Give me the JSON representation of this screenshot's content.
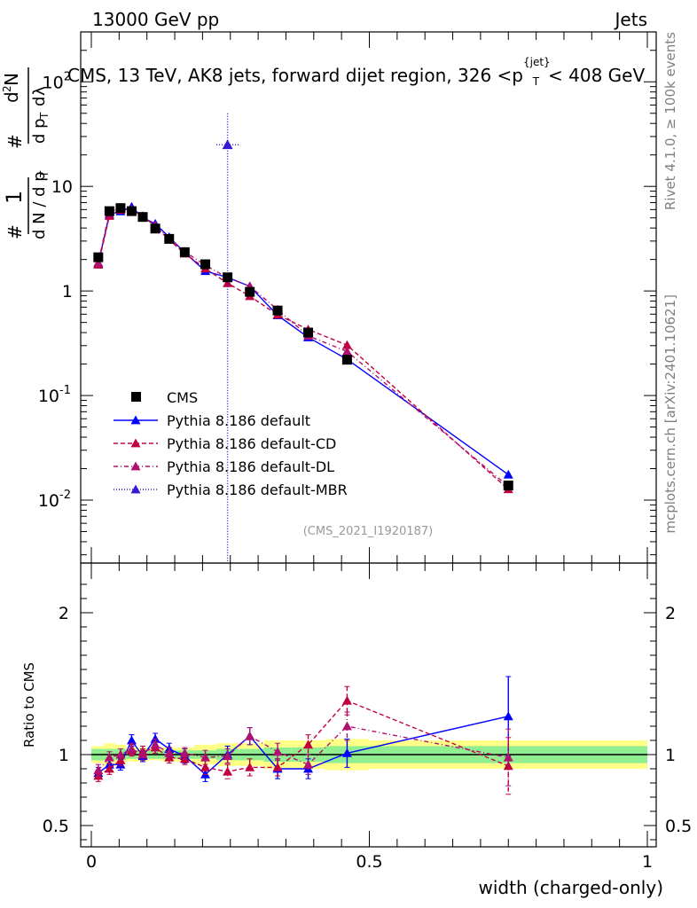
{
  "header": {
    "energy": "13000 GeV pp",
    "category": "Jets"
  },
  "side_labels": {
    "rivet": "Rivet 4.1.0, ≥ 100k events",
    "source": "mcplots.cern.ch [arXiv:2401.10621]"
  },
  "chart_data": {
    "type": "line",
    "title": "CMS, 13 TeV, AK8 jets, forward dijet region, 326 <p{jet}T< 408 GeV",
    "title_parts": {
      "pre": "CMS, 13 TeV, AK8 jets, forward dijet region, 326 <p",
      "sup": "{jet}",
      "sub": "T",
      "post": "< 408 GeV"
    },
    "ylabel_main": "1/dN/dp_T dN^2/dp_T dlambda",
    "ylabel_ratio": "Ratio to CMS",
    "xlabel": "width (charged-only)",
    "analysis_id": "(CMS_2021_I1920187)",
    "xlim": [
      0,
      1
    ],
    "ylim_main": [
      0.0025,
      300
    ],
    "ylim_ratio": [
      0.35,
      2.35
    ],
    "y_ticks_main": [
      {
        "exp": "-2"
      },
      {
        "exp": "-1"
      },
      {
        "plain": "1"
      },
      {
        "plain": "10"
      },
      {
        "exp": "2"
      }
    ],
    "y_ticks_ratio": [
      "0.5",
      "1",
      "2"
    ],
    "x_ticks": [
      "0",
      "0.5",
      "1"
    ],
    "data": {
      "name": "CMS",
      "x": [
        0.0125,
        0.0325,
        0.0525,
        0.0725,
        0.0925,
        0.115,
        0.14,
        0.168,
        0.205,
        0.245,
        0.285,
        0.335,
        0.39,
        0.46,
        0.75
      ],
      "y": [
        2.1,
        5.8,
        6.2,
        5.8,
        5.1,
        3.95,
        3.15,
        2.35,
        1.8,
        1.35,
        0.98,
        0.65,
        0.4,
        0.22,
        0.0138
      ]
    },
    "band_edges": [
      0,
      0.0225,
      0.0425,
      0.0625,
      0.0825,
      0.1025,
      0.1275,
      0.1525,
      0.185,
      0.225,
      0.265,
      0.31,
      0.36,
      0.42,
      0.5,
      1.0
    ],
    "band_stat": [
      0.04,
      0.04,
      0.04,
      0.03,
      0.03,
      0.03,
      0.03,
      0.03,
      0.03,
      0.04,
      0.04,
      0.05,
      0.05,
      0.06,
      0.06
    ],
    "band_total": [
      0.06,
      0.08,
      0.07,
      0.05,
      0.05,
      0.04,
      0.05,
      0.05,
      0.07,
      0.08,
      0.08,
      0.1,
      0.1,
      0.11,
      0.1
    ],
    "series": [
      {
        "name": "Pythia 8.186 default",
        "color": "#0000ff",
        "dash": "",
        "dy": 0,
        "ratio": [
          0.87,
          0.93,
          0.93,
          1.1,
          0.99,
          1.11,
          1.04,
          0.99,
          0.86,
          1.0,
          1.13,
          0.9,
          0.9,
          1.01,
          1.27
        ],
        "err": [
          0.04,
          0.04,
          0.04,
          0.04,
          0.04,
          0.04,
          0.04,
          0.05,
          0.05,
          0.06,
          0.06,
          0.07,
          0.07,
          0.1,
          0.28
        ]
      },
      {
        "name": "Pythia 8.186 default-CD",
        "color": "#c0003f",
        "dash": "5,3",
        "dy": 0,
        "ratio": [
          0.85,
          0.9,
          0.96,
          1.03,
          1.02,
          1.05,
          0.98,
          0.97,
          0.91,
          0.88,
          0.91,
          0.91,
          1.07,
          1.38,
          0.92
        ],
        "err": [
          0.04,
          0.04,
          0.04,
          0.04,
          0.04,
          0.04,
          0.04,
          0.04,
          0.05,
          0.05,
          0.06,
          0.06,
          0.07,
          0.1,
          0.2
        ]
      },
      {
        "name": "Pythia 8.186 default-DL",
        "color": "#b0106f",
        "dash": "5,3,1,3",
        "dy": 0,
        "ratio": [
          0.89,
          0.98,
          1.0,
          1.04,
          1.0,
          1.07,
          1.01,
          1.01,
          0.98,
          0.99,
          1.13,
          1.02,
          0.93,
          1.2,
          0.98
        ],
        "err": [
          0.04,
          0.04,
          0.04,
          0.04,
          0.04,
          0.04,
          0.04,
          0.04,
          0.05,
          0.05,
          0.06,
          0.06,
          0.07,
          0.1,
          0.2
        ]
      },
      {
        "name": "Pythia 8.186 default-MBR",
        "color": "#3a1ad0",
        "dash": "1,2",
        "dy": 0,
        "spike": {
          "x": 0.245,
          "y": 25,
          "ylo": 0.0025,
          "yhi": 50,
          "xlo": 0.225,
          "xhi": 0.265
        }
      }
    ]
  }
}
